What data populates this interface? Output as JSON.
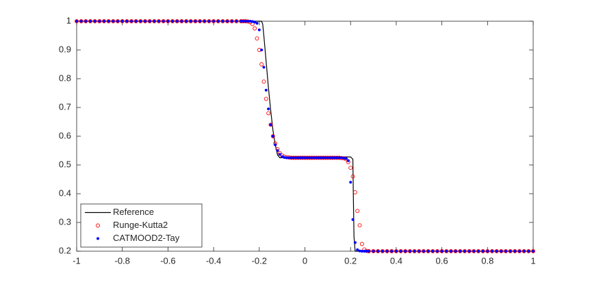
{
  "chart_data": {
    "type": "line",
    "x": [
      -1,
      -0.98,
      -0.96,
      -0.94,
      -0.92,
      -0.9,
      -0.88,
      -0.86,
      -0.84,
      -0.82,
      -0.8,
      -0.78,
      -0.76,
      -0.74,
      -0.72,
      -0.7,
      -0.68,
      -0.66,
      -0.64,
      -0.62,
      -0.6,
      -0.58,
      -0.56,
      -0.54,
      -0.52,
      -0.5,
      -0.48,
      -0.46,
      -0.44,
      -0.42,
      -0.4,
      -0.38,
      -0.36,
      -0.34,
      -0.32,
      -0.3,
      -0.28,
      -0.27,
      -0.26,
      -0.25,
      -0.24,
      -0.23,
      -0.22,
      -0.21,
      -0.2,
      -0.19,
      -0.18,
      -0.17,
      -0.16,
      -0.15,
      -0.14,
      -0.13,
      -0.12,
      -0.11,
      -0.1,
      -0.09,
      -0.08,
      -0.07,
      -0.06,
      -0.05,
      -0.04,
      -0.03,
      -0.02,
      -0.01,
      0,
      0.01,
      0.02,
      0.03,
      0.04,
      0.05,
      0.06,
      0.07,
      0.08,
      0.09,
      0.1,
      0.11,
      0.12,
      0.13,
      0.14,
      0.15,
      0.16,
      0.17,
      0.18,
      0.19,
      0.2,
      0.21,
      0.22,
      0.23,
      0.24,
      0.25,
      0.26,
      0.27,
      0.28,
      0.3,
      0.32,
      0.34,
      0.36,
      0.38,
      0.4,
      0.42,
      0.44,
      0.46,
      0.48,
      0.5,
      0.52,
      0.54,
      0.56,
      0.58,
      0.6,
      0.62,
      0.64,
      0.66,
      0.68,
      0.7,
      0.72,
      0.74,
      0.76,
      0.78,
      0.8,
      0.82,
      0.84,
      0.86,
      0.88,
      0.9,
      0.92,
      0.94,
      0.96,
      0.98,
      1
    ],
    "series": [
      {
        "name": "Reference",
        "color": "#000000",
        "style": "line",
        "x": [
          -1,
          -0.19,
          -0.185,
          -0.18,
          -0.17,
          -0.16,
          -0.15,
          -0.14,
          -0.13,
          -0.12,
          -0.11,
          0.2,
          0.21,
          0.212,
          0.215,
          0.22,
          1
        ],
        "values": [
          1,
          1,
          0.99,
          0.95,
          0.86,
          0.77,
          0.69,
          0.62,
          0.57,
          0.535,
          0.525,
          0.528,
          0.52,
          0.4,
          0.25,
          0.2,
          0.2
        ]
      },
      {
        "name": "Runge-Kutta2",
        "color": "#ff0000",
        "style": "circle",
        "values": [
          1,
          1,
          1,
          1,
          1,
          1,
          1,
          1,
          1,
          1,
          1,
          1,
          1,
          1,
          1,
          1,
          1,
          1,
          1,
          1,
          1,
          1,
          1,
          1,
          1,
          1,
          1,
          1,
          1,
          1,
          1,
          1,
          1,
          1,
          1,
          1,
          1,
          1,
          1,
          0.999,
          0.997,
          0.99,
          0.975,
          0.94,
          0.9,
          0.85,
          0.79,
          0.73,
          0.68,
          0.64,
          0.6,
          0.575,
          0.555,
          0.541,
          0.533,
          0.529,
          0.527,
          0.526,
          0.525,
          0.525,
          0.525,
          0.525,
          0.525,
          0.525,
          0.525,
          0.525,
          0.525,
          0.525,
          0.525,
          0.525,
          0.525,
          0.525,
          0.525,
          0.525,
          0.525,
          0.525,
          0.525,
          0.525,
          0.525,
          0.525,
          0.524,
          0.523,
          0.52,
          0.51,
          0.49,
          0.46,
          0.405,
          0.34,
          0.29,
          0.225,
          0.206,
          0.201,
          0.2,
          0.2,
          0.2,
          0.2,
          0.2,
          0.2,
          0.2,
          0.2,
          0.2,
          0.2,
          0.2,
          0.2,
          0.2,
          0.2,
          0.2,
          0.2,
          0.2,
          0.2,
          0.2,
          0.2,
          0.2,
          0.2,
          0.2,
          0.2,
          0.2,
          0.2,
          0.2,
          0.2,
          0.2,
          0.2,
          0.2,
          0.2,
          0.2,
          0.2,
          0.2,
          0.2,
          0.2
        ]
      },
      {
        "name": "CATMOOD2-Tay",
        "color": "#0000ff",
        "style": "dot",
        "values": [
          1,
          1,
          1,
          1,
          1,
          1,
          1,
          1,
          1,
          1,
          1,
          1,
          1,
          1,
          1,
          1,
          1,
          1,
          1,
          1,
          1,
          1,
          1,
          1,
          1,
          1,
          1,
          1,
          1,
          1,
          1,
          1,
          1,
          1,
          1,
          1,
          1,
          1,
          1,
          1,
          1,
          0.999,
          0.997,
          0.993,
          0.97,
          0.9,
          0.84,
          0.76,
          0.695,
          0.64,
          0.6,
          0.57,
          0.55,
          0.537,
          0.529,
          0.526,
          0.525,
          0.525,
          0.525,
          0.525,
          0.525,
          0.525,
          0.525,
          0.525,
          0.525,
          0.525,
          0.525,
          0.525,
          0.525,
          0.525,
          0.525,
          0.525,
          0.525,
          0.525,
          0.525,
          0.525,
          0.525,
          0.525,
          0.525,
          0.525,
          0.525,
          0.524,
          0.522,
          0.515,
          0.44,
          0.31,
          0.23,
          0.205,
          0.201,
          0.2,
          0.2,
          0.2,
          0.2,
          0.2,
          0.2,
          0.2,
          0.2,
          0.2,
          0.2,
          0.2,
          0.2,
          0.2,
          0.2,
          0.2,
          0.2,
          0.2,
          0.2,
          0.2,
          0.2,
          0.2,
          0.2,
          0.2,
          0.2,
          0.2,
          0.2,
          0.2,
          0.2,
          0.2,
          0.2,
          0.2,
          0.2,
          0.2,
          0.2,
          0.2,
          0.2,
          0.2,
          0.2,
          0.2,
          0.2
        ]
      }
    ],
    "xlim": [
      -1,
      1
    ],
    "xticks": [
      -1,
      -0.8,
      -0.6,
      -0.4,
      -0.2,
      0,
      0.2,
      0.4,
      0.6,
      0.8,
      1
    ],
    "ylim": [
      0.2,
      1
    ],
    "yticks": [
      0.2,
      0.3,
      0.4,
      0.5,
      0.6,
      0.7,
      0.8,
      0.9,
      1
    ],
    "legend": "lower left",
    "grid": false
  }
}
